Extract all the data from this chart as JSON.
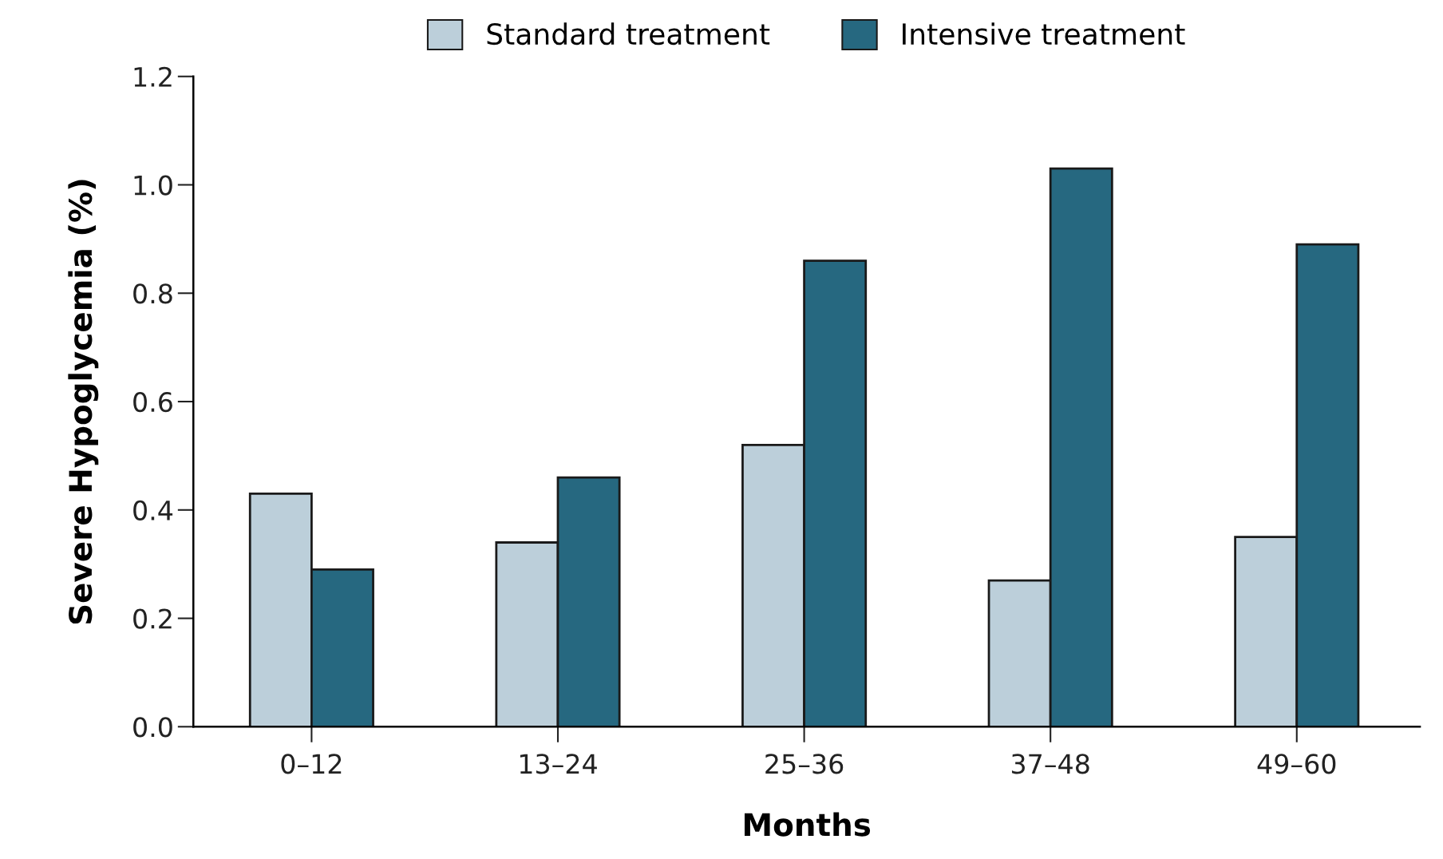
{
  "chart_data": {
    "type": "bar",
    "xlabel": "Months",
    "ylabel": "Severe Hypoglycemia (%)",
    "categories": [
      "0–12",
      "13–24",
      "25–36",
      "37–48",
      "49–60"
    ],
    "series": [
      {
        "name": "Standard treatment",
        "color": "#bccfda",
        "values": [
          0.43,
          0.34,
          0.52,
          0.27,
          0.35
        ]
      },
      {
        "name": "Intensive treatment",
        "color": "#266880",
        "values": [
          0.29,
          0.46,
          0.86,
          1.03,
          0.89
        ]
      }
    ],
    "ylim": [
      0,
      1.2
    ],
    "yticks": [
      {
        "value": 0,
        "label": "0.0"
      },
      0.2,
      0.4,
      0.6,
      0.8,
      {
        "value": 1.0,
        "label": "1.0"
      },
      1.2
    ],
    "grid": false,
    "legend": "top"
  }
}
